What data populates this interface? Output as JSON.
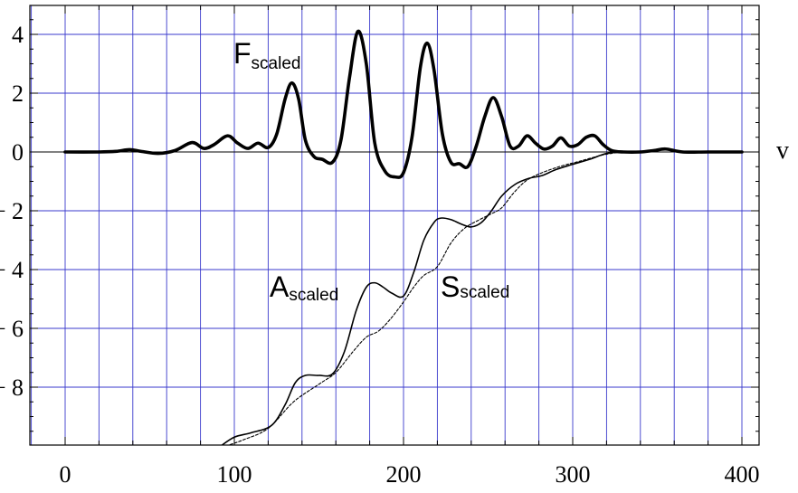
{
  "chart_data": {
    "type": "line",
    "xlabel": "v",
    "ylabel": "",
    "xlim": [
      0,
      400
    ],
    "ylim": [
      -10,
      5
    ],
    "x_ticks": [
      0,
      100,
      200,
      300,
      400
    ],
    "x_tick_labels": [
      "0",
      "100",
      "200",
      "300",
      "400"
    ],
    "y_ticks": [
      4,
      2,
      0,
      -2,
      -4,
      -6,
      -8
    ],
    "y_tick_labels": [
      "4",
      "2",
      "0",
      "− 2",
      "− 4",
      "− 6",
      "− 8"
    ],
    "grid": true,
    "colors": {
      "grid": "#3a3acc",
      "curve": "#000000"
    },
    "series": [
      {
        "name": "F",
        "name_subscript": "scaled",
        "style": "thick-solid",
        "x": [
          0,
          20,
          30,
          38,
          45,
          55,
          65,
          75,
          82,
          88,
          96,
          102,
          108,
          114,
          120,
          125,
          130,
          134,
          138,
          142,
          147,
          152,
          158,
          163,
          168,
          173,
          178,
          183,
          189,
          195,
          200,
          205,
          210,
          214,
          218,
          223,
          228,
          233,
          238,
          243,
          248,
          253,
          258,
          263,
          268,
          273,
          278,
          283,
          288,
          293,
          298,
          303,
          308,
          313,
          318,
          323,
          330,
          340,
          348,
          355,
          365,
          380,
          400
        ],
        "y": [
          0,
          0,
          0.02,
          0.08,
          0.02,
          -0.05,
          0.05,
          0.32,
          0.12,
          0.25,
          0.55,
          0.3,
          0.12,
          0.3,
          0.15,
          0.6,
          1.8,
          2.35,
          1.8,
          0.4,
          -0.15,
          -0.25,
          -0.35,
          0.4,
          2.5,
          4.1,
          3.0,
          0.3,
          -0.65,
          -0.85,
          -0.7,
          0.5,
          2.9,
          3.7,
          2.8,
          0.6,
          -0.35,
          -0.4,
          -0.5,
          0.2,
          1.2,
          1.85,
          1.2,
          0.2,
          0.2,
          0.55,
          0.3,
          0.1,
          0.2,
          0.48,
          0.2,
          0.25,
          0.5,
          0.55,
          0.25,
          0.05,
          0,
          0,
          0.05,
          0.1,
          0,
          0,
          0
        ]
      },
      {
        "name": "A",
        "name_subscript": "scaled",
        "style": "solid",
        "x": [
          92,
          100,
          110,
          122,
          130,
          136,
          142,
          150,
          158,
          165,
          172,
          178,
          183,
          188,
          193,
          200,
          206,
          212,
          218,
          222,
          228,
          234,
          240,
          246,
          252,
          258,
          266,
          274,
          282,
          290,
          300,
          310,
          320,
          330,
          340
        ],
        "y": [
          -10,
          -9.7,
          -9.55,
          -9.3,
          -8.6,
          -7.85,
          -7.6,
          -7.6,
          -7.55,
          -6.8,
          -5.4,
          -4.6,
          -4.45,
          -4.6,
          -4.8,
          -4.9,
          -4.1,
          -3.0,
          -2.4,
          -2.25,
          -2.3,
          -2.45,
          -2.55,
          -2.4,
          -2.0,
          -1.5,
          -1.1,
          -0.9,
          -0.8,
          -0.6,
          -0.42,
          -0.25,
          -0.05,
          0,
          0
        ]
      },
      {
        "name": "S",
        "name_subscript": "scaled",
        "style": "dashed",
        "x": [
          95,
          105,
          120,
          135,
          150,
          160,
          170,
          178,
          185,
          192,
          200,
          206,
          212,
          220,
          228,
          236,
          245,
          252,
          258,
          265,
          272,
          280,
          292,
          305,
          318,
          330,
          340
        ],
        "y": [
          -10,
          -9.8,
          -9.4,
          -8.5,
          -7.9,
          -7.5,
          -6.8,
          -6.3,
          -6.1,
          -5.7,
          -5.1,
          -4.6,
          -4.2,
          -3.9,
          -3.1,
          -2.6,
          -2.3,
          -2.1,
          -1.9,
          -1.4,
          -1.0,
          -0.75,
          -0.5,
          -0.3,
          -0.1,
          0,
          0
        ]
      }
    ]
  }
}
